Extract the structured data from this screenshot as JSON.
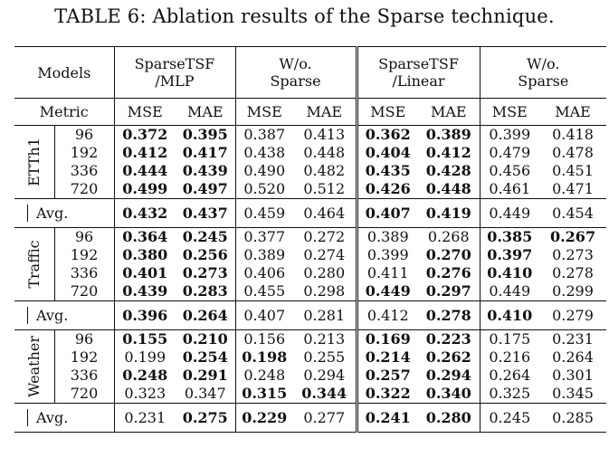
{
  "caption": "TABLE 6: Ablation results of the Sparse technique.",
  "header": {
    "models_label": "Models",
    "metric_label": "Metric",
    "model_cols": [
      {
        "line1": "SparseTSF",
        "line2": "/MLP"
      },
      {
        "line1": "W/o.",
        "line2": "Sparse"
      },
      {
        "line1": "SparseTSF",
        "line2": "/Linear"
      },
      {
        "line1": "W/o.",
        "line2": "Sparse"
      }
    ],
    "metrics": [
      "MSE",
      "MAE",
      "MSE",
      "MAE",
      "MSE",
      "MAE",
      "MSE",
      "MAE"
    ]
  },
  "groups": [
    {
      "name": "ETTh1",
      "rows": [
        {
          "horizon": "96",
          "v": [
            "0.372",
            "0.395",
            "0.387",
            "0.413",
            "0.362",
            "0.389",
            "0.399",
            "0.418"
          ],
          "bold": [
            1,
            1,
            0,
            0,
            1,
            1,
            0,
            0
          ]
        },
        {
          "horizon": "192",
          "v": [
            "0.412",
            "0.417",
            "0.438",
            "0.448",
            "0.404",
            "0.412",
            "0.479",
            "0.478"
          ],
          "bold": [
            1,
            1,
            0,
            0,
            1,
            1,
            0,
            0
          ]
        },
        {
          "horizon": "336",
          "v": [
            "0.444",
            "0.439",
            "0.490",
            "0.482",
            "0.435",
            "0.428",
            "0.456",
            "0.451"
          ],
          "bold": [
            1,
            1,
            0,
            0,
            1,
            1,
            0,
            0
          ]
        },
        {
          "horizon": "720",
          "v": [
            "0.499",
            "0.497",
            "0.520",
            "0.512",
            "0.426",
            "0.448",
            "0.461",
            "0.471"
          ],
          "bold": [
            1,
            1,
            0,
            0,
            1,
            1,
            0,
            0
          ]
        }
      ],
      "avg": {
        "label": "Avg.",
        "v": [
          "0.432",
          "0.437",
          "0.459",
          "0.464",
          "0.407",
          "0.419",
          "0.449",
          "0.454"
        ],
        "bold": [
          1,
          1,
          0,
          0,
          1,
          1,
          0,
          0
        ]
      }
    },
    {
      "name": "Traffic",
      "rows": [
        {
          "horizon": "96",
          "v": [
            "0.364",
            "0.245",
            "0.377",
            "0.272",
            "0.389",
            "0.268",
            "0.385",
            "0.267"
          ],
          "bold": [
            1,
            1,
            0,
            0,
            0,
            0,
            1,
            1
          ]
        },
        {
          "horizon": "192",
          "v": [
            "0.380",
            "0.256",
            "0.389",
            "0.274",
            "0.399",
            "0.270",
            "0.397",
            "0.273"
          ],
          "bold": [
            1,
            1,
            0,
            0,
            0,
            1,
            1,
            0
          ]
        },
        {
          "horizon": "336",
          "v": [
            "0.401",
            "0.273",
            "0.406",
            "0.280",
            "0.411",
            "0.276",
            "0.410",
            "0.278"
          ],
          "bold": [
            1,
            1,
            0,
            0,
            0,
            1,
            1,
            0
          ]
        },
        {
          "horizon": "720",
          "v": [
            "0.439",
            "0.283",
            "0.455",
            "0.298",
            "0.449",
            "0.297",
            "0.449",
            "0.299"
          ],
          "bold": [
            1,
            1,
            0,
            0,
            1,
            1,
            0,
            0
          ]
        }
      ],
      "avg": {
        "label": "Avg.",
        "v": [
          "0.396",
          "0.264",
          "0.407",
          "0.281",
          "0.412",
          "0.278",
          "0.410",
          "0.279"
        ],
        "bold": [
          1,
          1,
          0,
          0,
          0,
          1,
          1,
          0
        ]
      }
    },
    {
      "name": "Weather",
      "rows": [
        {
          "horizon": "96",
          "v": [
            "0.155",
            "0.210",
            "0.156",
            "0.213",
            "0.169",
            "0.223",
            "0.175",
            "0.231"
          ],
          "bold": [
            1,
            1,
            0,
            0,
            1,
            1,
            0,
            0
          ]
        },
        {
          "horizon": "192",
          "v": [
            "0.199",
            "0.254",
            "0.198",
            "0.255",
            "0.214",
            "0.262",
            "0.216",
            "0.264"
          ],
          "bold": [
            0,
            1,
            1,
            0,
            1,
            1,
            0,
            0
          ]
        },
        {
          "horizon": "336",
          "v": [
            "0.248",
            "0.291",
            "0.248",
            "0.294",
            "0.257",
            "0.294",
            "0.264",
            "0.301"
          ],
          "bold": [
            1,
            1,
            0,
            0,
            1,
            1,
            0,
            0
          ]
        },
        {
          "horizon": "720",
          "v": [
            "0.323",
            "0.347",
            "0.315",
            "0.344",
            "0.322",
            "0.340",
            "0.325",
            "0.345"
          ],
          "bold": [
            0,
            0,
            1,
            1,
            1,
            1,
            0,
            0
          ]
        }
      ],
      "avg": {
        "label": "Avg.",
        "v": [
          "0.231",
          "0.275",
          "0.229",
          "0.277",
          "0.241",
          "0.280",
          "0.245",
          "0.285"
        ],
        "bold": [
          0,
          1,
          1,
          0,
          1,
          1,
          0,
          0
        ]
      }
    }
  ]
}
